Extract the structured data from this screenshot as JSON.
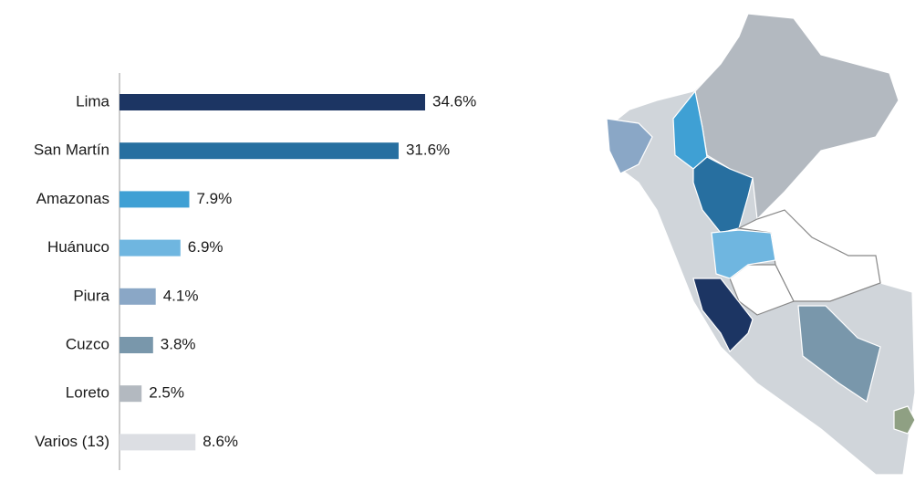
{
  "chart_data": {
    "type": "bar",
    "categories": [
      "Lima",
      "San Martín",
      "Amazonas",
      "Huánuco",
      "Piura",
      "Cuzco",
      "Loreto",
      "Varios (13)"
    ],
    "values": [
      34.6,
      31.6,
      7.9,
      6.9,
      4.1,
      3.8,
      2.5,
      8.6
    ],
    "value_labels": [
      "34.6%",
      "31.6%",
      "7.9%",
      "6.9%",
      "4.1%",
      "3.8%",
      "2.5%",
      "8.6%"
    ],
    "colors": [
      "#1c3563",
      "#276fa0",
      "#3fa0d4",
      "#6fb6e0",
      "#8aa7c6",
      "#7997ab",
      "#b3b9c0",
      "#dcdee3"
    ]
  }
}
